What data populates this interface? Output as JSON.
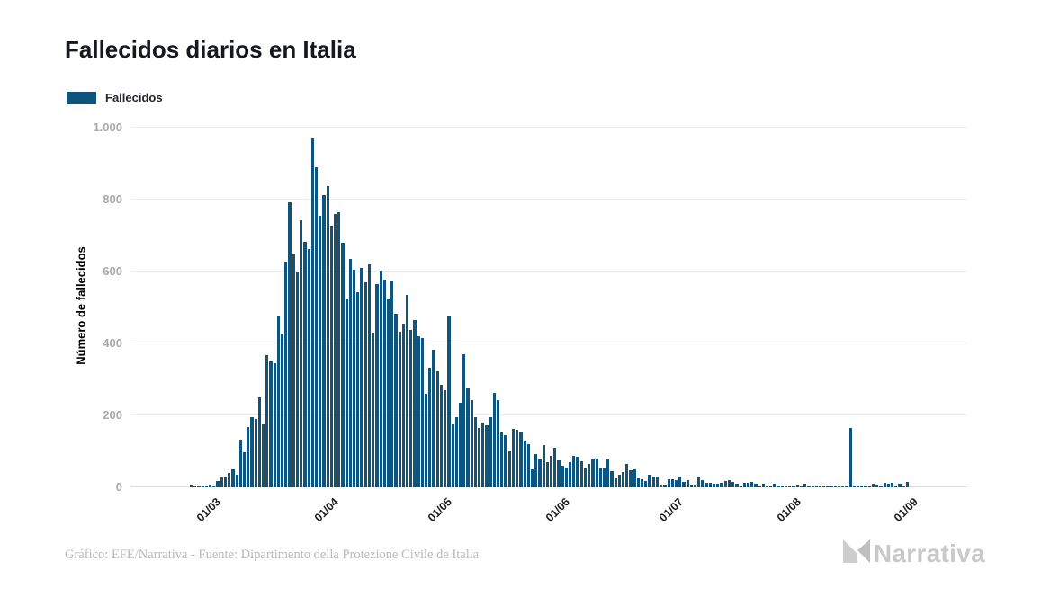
{
  "title": "Fallecidos diarios en Italia",
  "legend": {
    "label": "Fallecidos",
    "color": "#0e547d"
  },
  "y_axis": {
    "title": "Número de fallecidos",
    "tick_values": [
      0,
      200,
      400,
      600,
      800,
      1000
    ],
    "tick_labels": [
      "0",
      "200",
      "400",
      "600",
      "800",
      "1.000"
    ]
  },
  "x_axis": {
    "ticks": [
      {
        "label": "01/03",
        "day": 6
      },
      {
        "label": "01/04",
        "day": 37
      },
      {
        "label": "01/05",
        "day": 67
      },
      {
        "label": "01/06",
        "day": 98
      },
      {
        "label": "01/07",
        "day": 128
      },
      {
        "label": "01/08",
        "day": 159
      },
      {
        "label": "01/09",
        "day": 190
      }
    ]
  },
  "footer": {
    "credit": "Gráfico: EFE/Narrativa - Fuente: Dipartimento della Protezione Civile de Italia",
    "brand": "Narrativa"
  },
  "chart_data": {
    "type": "bar",
    "title": "Fallecidos diarios en Italia",
    "xlabel": "",
    "ylabel": "Número de fallecidos",
    "ylim": [
      0,
      1000
    ],
    "grid": "horizontal",
    "legend_position": "top-left",
    "series_name": "Fallecidos",
    "bar_color": "#0e547d",
    "x": [
      "24/02",
      "25/02",
      "26/02",
      "27/02",
      "28/02",
      "29/02",
      "01/03",
      "02/03",
      "03/03",
      "04/03",
      "05/03",
      "06/03",
      "07/03",
      "08/03",
      "09/03",
      "10/03",
      "11/03",
      "12/03",
      "13/03",
      "14/03",
      "15/03",
      "16/03",
      "17/03",
      "18/03",
      "19/03",
      "20/03",
      "21/03",
      "22/03",
      "23/03",
      "24/03",
      "25/03",
      "26/03",
      "27/03",
      "28/03",
      "29/03",
      "30/03",
      "31/03",
      "01/04",
      "02/04",
      "03/04",
      "04/04",
      "05/04",
      "06/04",
      "07/04",
      "08/04",
      "09/04",
      "10/04",
      "11/04",
      "12/04",
      "13/04",
      "14/04",
      "15/04",
      "16/04",
      "17/04",
      "18/04",
      "19/04",
      "20/04",
      "21/04",
      "22/04",
      "23/04",
      "24/04",
      "25/04",
      "26/04",
      "27/04",
      "28/04",
      "29/04",
      "30/04",
      "01/05",
      "02/05",
      "03/05",
      "04/05",
      "05/05",
      "06/05",
      "07/05",
      "08/05",
      "09/05",
      "10/05",
      "11/05",
      "12/05",
      "13/05",
      "14/05",
      "15/05",
      "16/05",
      "17/05",
      "18/05",
      "19/05",
      "20/05",
      "21/05",
      "22/05",
      "23/05",
      "24/05",
      "25/05",
      "26/05",
      "27/05",
      "28/05",
      "29/05",
      "30/05",
      "31/05",
      "01/06",
      "02/06",
      "03/06",
      "04/06",
      "05/06",
      "06/06",
      "07/06",
      "08/06",
      "09/06",
      "10/06",
      "11/06",
      "12/06",
      "13/06",
      "14/06",
      "15/06",
      "16/06",
      "17/06",
      "18/06",
      "19/06",
      "20/06",
      "21/06",
      "22/06",
      "23/06",
      "24/06",
      "25/06",
      "26/06",
      "27/06",
      "28/06",
      "29/06",
      "30/06",
      "01/07",
      "02/07",
      "03/07",
      "04/07",
      "05/07",
      "06/07",
      "07/07",
      "08/07",
      "09/07",
      "10/07",
      "11/07",
      "12/07",
      "13/07",
      "14/07",
      "15/07",
      "16/07",
      "17/07",
      "18/07",
      "19/07",
      "20/07",
      "21/07",
      "22/07",
      "23/07",
      "24/07",
      "25/07",
      "26/07",
      "27/07",
      "28/07",
      "29/07",
      "30/07",
      "31/07",
      "01/08",
      "02/08",
      "03/08",
      "04/08",
      "05/08",
      "06/08",
      "07/08",
      "08/08",
      "09/08",
      "10/08",
      "11/08",
      "12/08",
      "13/08",
      "14/08",
      "15/08",
      "16/08",
      "17/08",
      "18/08",
      "19/08",
      "20/08",
      "21/08",
      "22/08",
      "23/08",
      "24/08",
      "25/08",
      "26/08",
      "27/08",
      "28/08",
      "29/08",
      "30/08",
      "31/08"
    ],
    "values": [
      7,
      3,
      2,
      5,
      4,
      8,
      5,
      18,
      27,
      28,
      41,
      49,
      36,
      133,
      97,
      168,
      196,
      189,
      250,
      175,
      368,
      349,
      345,
      475,
      427,
      627,
      793,
      651,
      601,
      743,
      683,
      662,
      969,
      889,
      756,
      812,
      837,
      727,
      760,
      766,
      681,
      525,
      636,
      604,
      542,
      610,
      570,
      619,
      431,
      566,
      602,
      578,
      525,
      575,
      482,
      433,
      454,
      534,
      437,
      464,
      420,
      415,
      260,
      333,
      382,
      323,
      285,
      269,
      474,
      174,
      195,
      236,
      369,
      274,
      243,
      194,
      165,
      179,
      172,
      195,
      262,
      242,
      153,
      145,
      99,
      162,
      161,
      156,
      130,
      119,
      50,
      92,
      78,
      117,
      70,
      87,
      111,
      75,
      60,
      55,
      71,
      88,
      85,
      72,
      53,
      65,
      79,
      79,
      53,
      56,
      78,
      44,
      26,
      34,
      43,
      66,
      47,
      49,
      24,
      23,
      18,
      34,
      30,
      30,
      8,
      8,
      23,
      23,
      21,
      30,
      15,
      21,
      8,
      8,
      30,
      20,
      12,
      12,
      9,
      9,
      13,
      17,
      20,
      16,
      11,
      3,
      13,
      13,
      15,
      10,
      6,
      10,
      5,
      5,
      11,
      5,
      6,
      3,
      3,
      5,
      8,
      5,
      10,
      6,
      6,
      3,
      2,
      2,
      4,
      6,
      6,
      3,
      6,
      4,
      165,
      4,
      5,
      5,
      6,
      3,
      9,
      7,
      4,
      13,
      10,
      13,
      3,
      9,
      4,
      16
    ]
  }
}
